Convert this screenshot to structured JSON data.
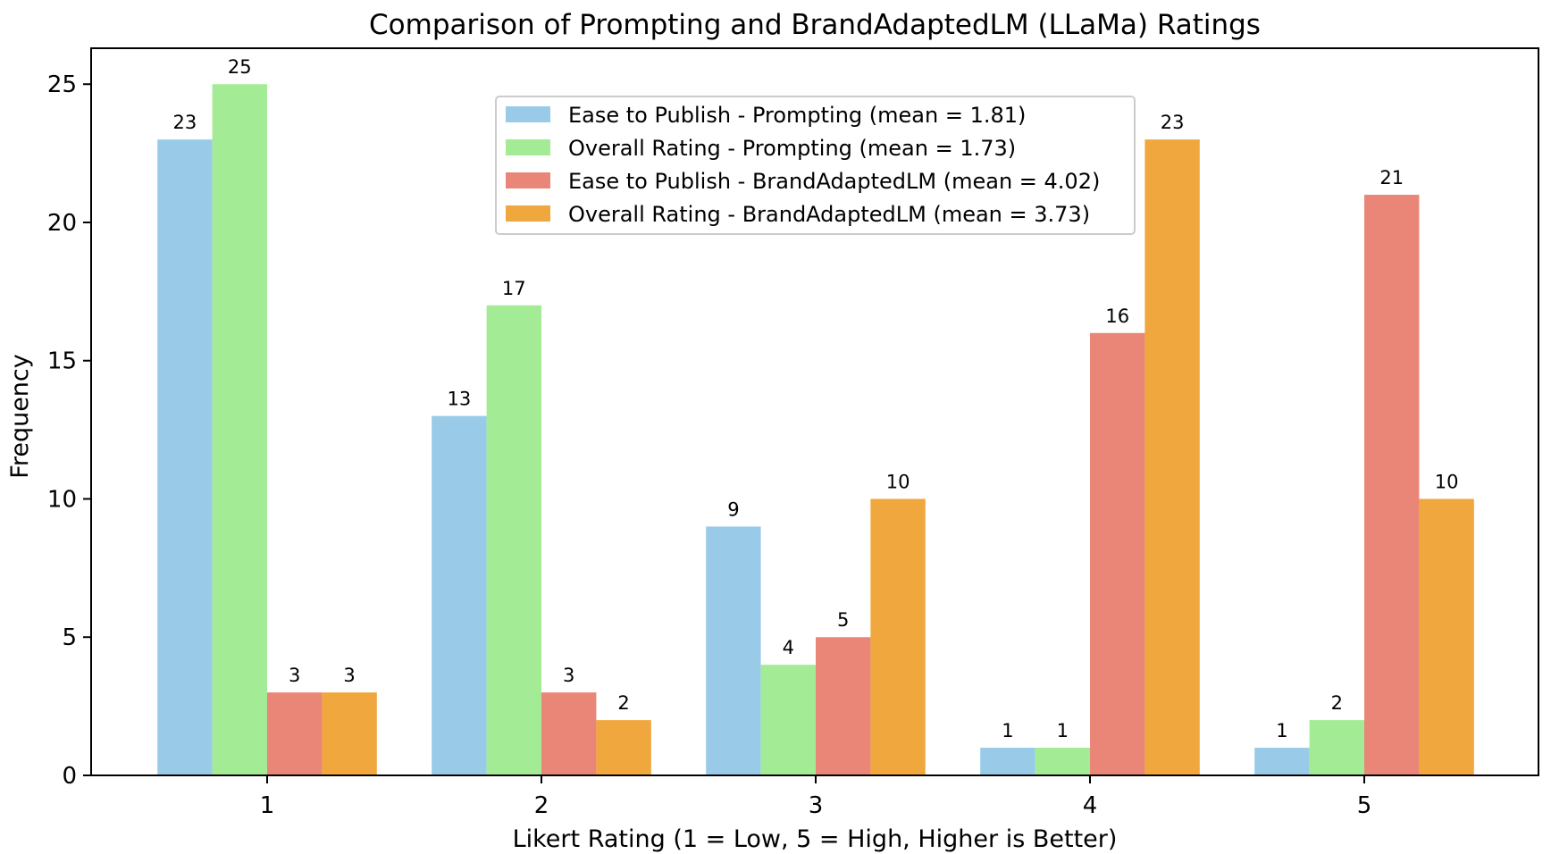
{
  "chart_data": {
    "type": "bar",
    "title": "Comparison of Prompting and BrandAdaptedLM (LLaMa) Ratings",
    "xlabel": "Likert Rating (1 = Low, 5 = High, Higher is Better)",
    "ylabel": "Frequency",
    "categories": [
      "1",
      "2",
      "3",
      "4",
      "5"
    ],
    "ylim": [
      0,
      26.3
    ],
    "yticks": [
      0,
      5,
      10,
      15,
      20,
      25
    ],
    "grid": false,
    "legend_position": "upper-center",
    "series": [
      {
        "name": "Ease to Publish - Prompting (mean = 1.81)",
        "color": "#99cbe8",
        "values": [
          23,
          13,
          9,
          1,
          1
        ]
      },
      {
        "name": "Overall Rating - Prompting (mean = 1.73)",
        "color": "#a4eb96",
        "values": [
          25,
          17,
          4,
          1,
          2
        ]
      },
      {
        "name": "Ease to Publish - BrandAdaptedLM (mean = 4.02)",
        "color": "#e98677",
        "values": [
          3,
          3,
          5,
          16,
          21
        ]
      },
      {
        "name": "Overall Rating - BrandAdaptedLM (mean = 3.73)",
        "color": "#f0a73d",
        "values": [
          3,
          2,
          10,
          23,
          10
        ]
      }
    ]
  }
}
